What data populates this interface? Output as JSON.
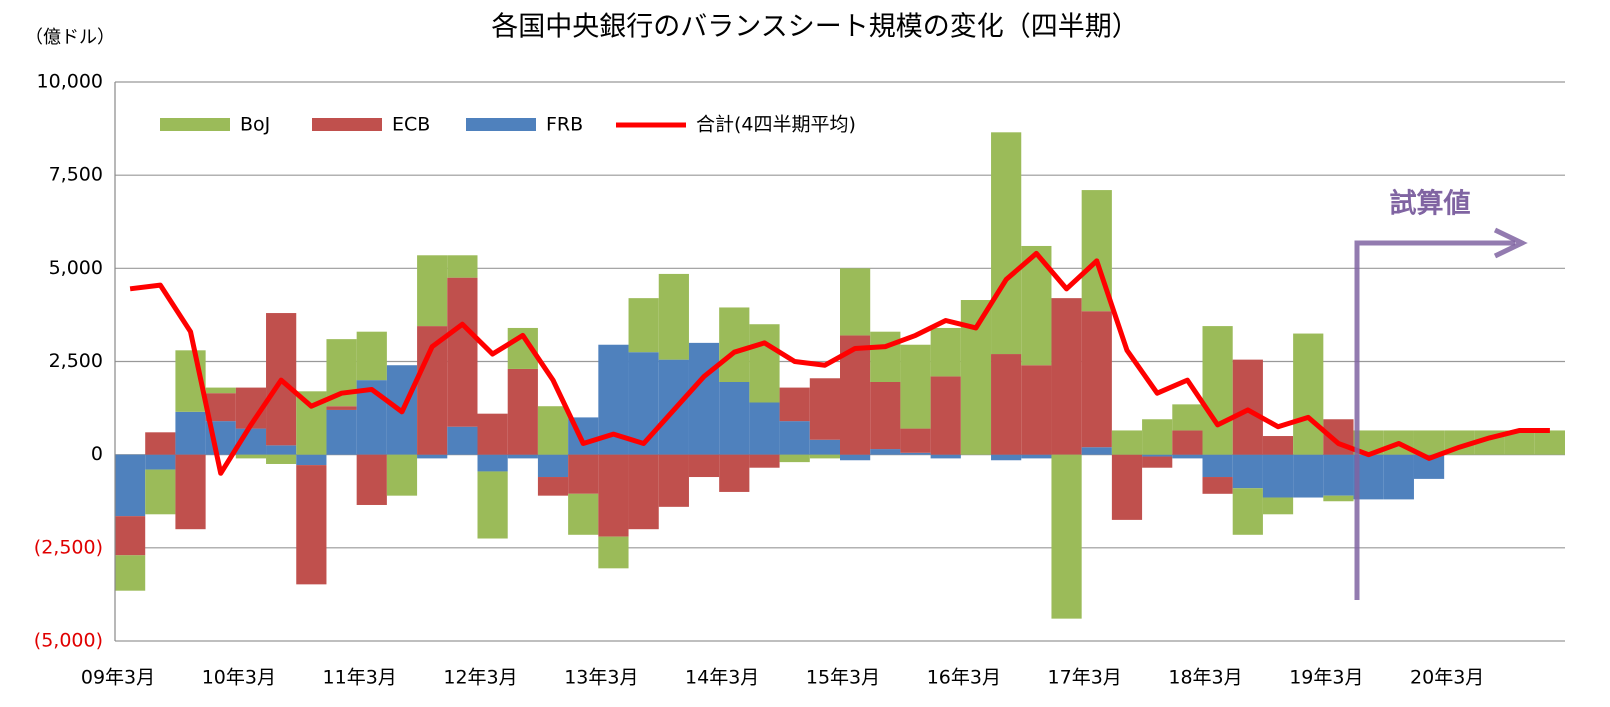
{
  "chart_data": {
    "type": "bar",
    "stacked": true,
    "title": "各国中央銀行のバランスシート規模の変化（四半期）",
    "y_label": "（億ドル）",
    "annotation": "試算値",
    "annotation_color": "#8064a2",
    "negative_tick_color": "#e00000",
    "grid": true,
    "categories": [
      "09年3月",
      null,
      null,
      null,
      "10年3月",
      null,
      null,
      null,
      "11年3月",
      null,
      null,
      null,
      "12年3月",
      null,
      null,
      null,
      "13年3月",
      null,
      null,
      null,
      "14年3月",
      null,
      null,
      null,
      "15年3月",
      null,
      null,
      null,
      "16年3月",
      null,
      null,
      null,
      "17年3月",
      null,
      null,
      null,
      "18年3月",
      null,
      null,
      null,
      "19年3月",
      null,
      null,
      null,
      "20年3月",
      null,
      null,
      null
    ],
    "series": [
      {
        "name": "BoJ",
        "color": "#9bbb59",
        "values": [
          -950,
          -1200,
          1650,
          150,
          -100,
          -250,
          1700,
          1800,
          1300,
          -1100,
          1900,
          600,
          -1800,
          1100,
          1300,
          -1100,
          -850,
          1450,
          2300,
          0,
          2000,
          2100,
          -200,
          -100,
          1800,
          1350,
          2250,
          1300,
          4150,
          5950,
          3200,
          -4400,
          3250,
          650,
          950,
          700,
          3450,
          -1250,
          -450,
          3250,
          -150,
          650,
          650,
          650,
          650,
          650,
          650,
          650
        ]
      },
      {
        "name": "ECB",
        "color": "#c0504d",
        "values": [
          -1050,
          600,
          -2000,
          750,
          1100,
          3550,
          -3200,
          100,
          -1350,
          0,
          3450,
          4000,
          1100,
          2300,
          -500,
          -1050,
          -2200,
          -2000,
          -1400,
          -600,
          -1000,
          -350,
          900,
          1650,
          3200,
          1800,
          650,
          2100,
          0,
          2700,
          2400,
          4200,
          3650,
          -1750,
          -300,
          650,
          -450,
          2550,
          500,
          0,
          950,
          0,
          0,
          0,
          0,
          0,
          0,
          0
        ]
      },
      {
        "name": "FRB",
        "color": "#4f81bd",
        "values": [
          -1650,
          -400,
          1150,
          900,
          700,
          250,
          -280,
          1200,
          2000,
          2400,
          -100,
          750,
          -450,
          -100,
          -600,
          1000,
          2950,
          2750,
          2550,
          3000,
          1950,
          1400,
          900,
          400,
          -150,
          150,
          50,
          -100,
          0,
          -150,
          -100,
          0,
          200,
          0,
          -50,
          -100,
          -600,
          -900,
          -1150,
          -1150,
          -1100,
          -1200,
          -1200,
          -650,
          0,
          0,
          0,
          0
        ]
      }
    ],
    "line": {
      "name": "合計(4四半期平均)",
      "color": "#ff0000",
      "values": [
        4450,
        4550,
        3300,
        -500,
        800,
        2000,
        1300,
        1650,
        1750,
        1150,
        2900,
        3500,
        2700,
        3200,
        2000,
        300,
        550,
        300,
        1200,
        2100,
        2750,
        3000,
        2500,
        2400,
        2850,
        2900,
        3200,
        3600,
        3400,
        4700,
        5400,
        4450,
        5200,
        2800,
        1650,
        2000,
        800,
        1200,
        750,
        1000,
        300,
        0,
        300,
        -100,
        200,
        450,
        650,
        650
      ]
    },
    "ylim": [
      -5000,
      10000
    ],
    "yticks": [
      {
        "value": -5000,
        "label": "(5,000)"
      },
      {
        "value": -2500,
        "label": "(2,500)"
      },
      0,
      {
        "value": 2500,
        "label": "2,500"
      },
      {
        "value": 5000,
        "label": "5,000"
      },
      {
        "value": 7500,
        "label": "7,500"
      },
      {
        "value": 10000,
        "label": "10,000"
      }
    ]
  }
}
